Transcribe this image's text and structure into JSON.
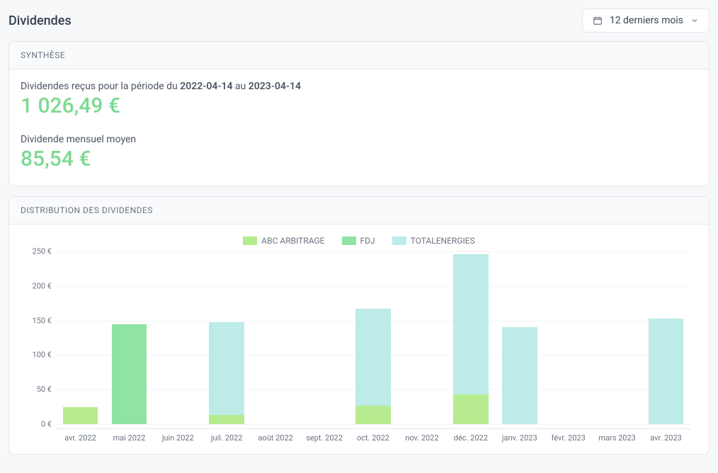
{
  "page": {
    "title": "Dividendes",
    "period_selector_label": "12 derniers mois"
  },
  "summary": {
    "card_title": "SYNTHÈSE",
    "period_text_prefix": "Dividendes reçus pour la période du ",
    "period_start": "2022-04-14",
    "period_mid": " au ",
    "period_end": "2023-04-14",
    "total_value": "1 026,49 €",
    "monthly_label": "Dividende mensuel moyen",
    "monthly_value": "85,54 €",
    "value_color": "#7cd992"
  },
  "distribution": {
    "card_title": "DISTRIBUTION DES DIVIDENDES",
    "type": "stacked-bar",
    "y_unit": "€",
    "ylim": [
      0,
      250
    ],
    "y_ticks": [
      0,
      50,
      100,
      150,
      200,
      250
    ],
    "y_tick_labels": [
      "0 €",
      "50 €",
      "100 €",
      "150 €",
      "200 €",
      "250 €"
    ],
    "categories": [
      "avr. 2022",
      "mai 2022",
      "juin 2022",
      "juil. 2022",
      "août 2022",
      "sept. 2022",
      "oct. 2022",
      "nov. 2022",
      "déc. 2022",
      "janv. 2023",
      "févr. 2023",
      "mars 2023",
      "avr. 2023"
    ],
    "series": [
      {
        "name": "ABC ARBITRAGE",
        "color": "#b7eb8f",
        "values": [
          25,
          0,
          0,
          13,
          0,
          0,
          27,
          0,
          43,
          0,
          0,
          0,
          0
        ]
      },
      {
        "name": "FDJ",
        "color": "#8fe3a4",
        "values": [
          0,
          144,
          0,
          0,
          0,
          0,
          0,
          0,
          0,
          0,
          0,
          0,
          0
        ]
      },
      {
        "name": "TOTALENERGIES",
        "color": "#bcebe8",
        "values": [
          0,
          0,
          0,
          135,
          0,
          0,
          140,
          0,
          203,
          140,
          0,
          0,
          153
        ]
      }
    ],
    "background_color": "#ffffff",
    "grid_color": "#f3f4f6",
    "axis_label_color": "#6b7280",
    "axis_label_fontsize": 11,
    "legend_fontsize": 12,
    "bar_width_ratio": 0.72
  },
  "colors": {
    "page_bg": "#f6f8fa",
    "card_border": "#e5e7eb",
    "text_primary": "#374151",
    "text_secondary": "#6b7280"
  }
}
